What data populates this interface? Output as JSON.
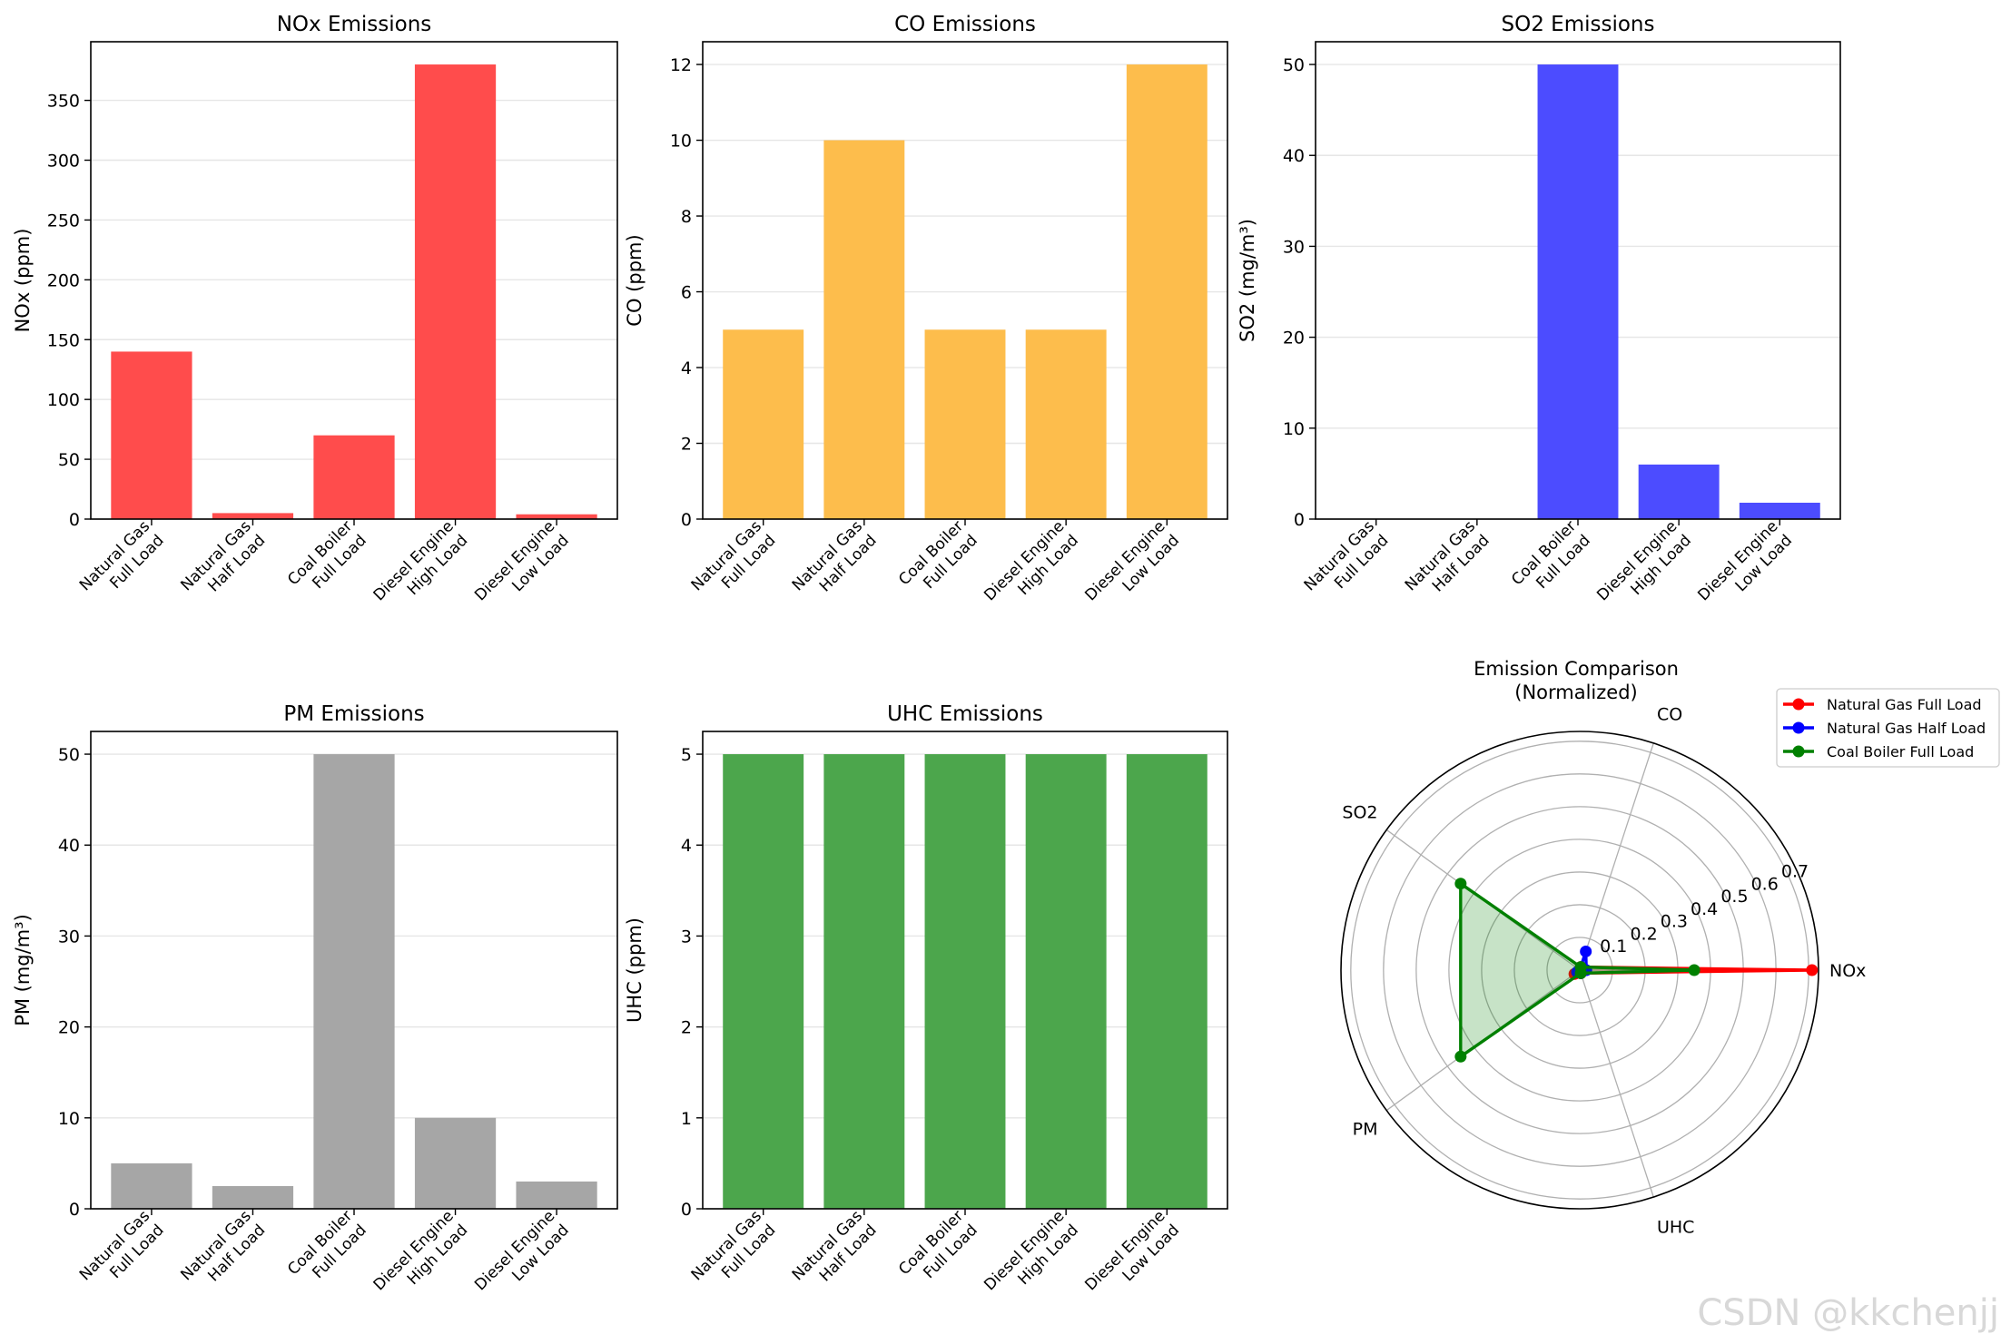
{
  "watermark": "CSDN @kkchenjj",
  "chart_data": [
    {
      "type": "bar",
      "id": "nox",
      "title": "NOx Emissions",
      "ylabel": "NOx (ppm)",
      "categories": [
        "Natural Gas\nFull Load",
        "Natural Gas\nHalf Load",
        "Coal Boiler\nFull Load",
        "Diesel Engine\nHigh Load",
        "Diesel Engine\nLow Load"
      ],
      "values": [
        140,
        5,
        70,
        380,
        4
      ],
      "ylim": [
        0,
        399
      ],
      "yticks": [
        0,
        50,
        100,
        150,
        200,
        250,
        300,
        350
      ],
      "color": "#ff4c4c",
      "grid": true
    },
    {
      "type": "bar",
      "id": "co",
      "title": "CO Emissions",
      "ylabel": "CO (ppm)",
      "categories": [
        "Natural Gas\nFull Load",
        "Natural Gas\nHalf Load",
        "Coal Boiler\nFull Load",
        "Diesel Engine\nHigh Load",
        "Diesel Engine\nLow Load"
      ],
      "values": [
        5,
        10,
        5,
        5,
        12
      ],
      "ylim": [
        0,
        12.6
      ],
      "yticks": [
        0,
        2,
        4,
        6,
        8,
        10,
        12
      ],
      "color": "#fdbd4c",
      "grid": true
    },
    {
      "type": "bar",
      "id": "so2",
      "title": "SO2 Emissions",
      "ylabel": "SO2 (mg/m³)",
      "categories": [
        "Natural Gas\nFull Load",
        "Natural Gas\nHalf Load",
        "Coal Boiler\nFull Load",
        "Diesel Engine\nHigh Load",
        "Diesel Engine\nLow Load"
      ],
      "values": [
        0,
        0,
        50,
        6,
        1.8
      ],
      "ylim": [
        0,
        52.5
      ],
      "yticks": [
        0,
        10,
        20,
        30,
        40,
        50
      ],
      "color": "#4c4cff",
      "grid": true
    },
    {
      "type": "bar",
      "id": "pm",
      "title": "PM Emissions",
      "ylabel": "PM (mg/m³)",
      "categories": [
        "Natural Gas\nFull Load",
        "Natural Gas\nHalf Load",
        "Coal Boiler\nFull Load",
        "Diesel Engine\nHigh Load",
        "Diesel Engine\nLow Load"
      ],
      "values": [
        5,
        2.5,
        50,
        10,
        3
      ],
      "ylim": [
        0,
        52.5
      ],
      "yticks": [
        0,
        10,
        20,
        30,
        40,
        50
      ],
      "color": "#a6a6a6",
      "grid": true
    },
    {
      "type": "bar",
      "id": "uhc",
      "title": "UHC Emissions",
      "ylabel": "UHC (ppm)",
      "categories": [
        "Natural Gas\nFull Load",
        "Natural Gas\nHalf Load",
        "Coal Boiler\nFull Load",
        "Diesel Engine\nHigh Load",
        "Diesel Engine\nLow Load"
      ],
      "values": [
        5,
        5,
        5,
        5,
        5
      ],
      "ylim": [
        0,
        5.25
      ],
      "yticks": [
        0,
        1,
        2,
        3,
        4,
        5
      ],
      "color": "#4ca64c",
      "grid": true
    },
    {
      "type": "radar",
      "id": "radar",
      "title": "Emission Comparison\n(Normalized)",
      "axes": [
        "NOx",
        "CO",
        "SO2",
        "PM",
        "UHC"
      ],
      "rmax": 0.73,
      "rticks": [
        0.1,
        0.2,
        0.3,
        0.4,
        0.5,
        0.6,
        0.7
      ],
      "rtick_labels": [
        "0.1",
        "0.2",
        "0.3",
        "0.4",
        "0.5",
        "0.6",
        "0.7"
      ],
      "series": [
        {
          "name": "Natural Gas Full Load",
          "values": [
            0.71,
            0.01,
            0.0,
            0.02,
            0.01
          ],
          "color": "#ff0000"
        },
        {
          "name": "Natural Gas Half Load",
          "values": [
            0.02,
            0.06,
            0.0,
            0.01,
            0.01
          ],
          "color": "#0000ff"
        },
        {
          "name": "Coal Boiler Full Load",
          "values": [
            0.35,
            0.01,
            0.45,
            0.45,
            0.01
          ],
          "color": "#008000"
        }
      ],
      "legend_position": "upper-right-outside"
    }
  ]
}
